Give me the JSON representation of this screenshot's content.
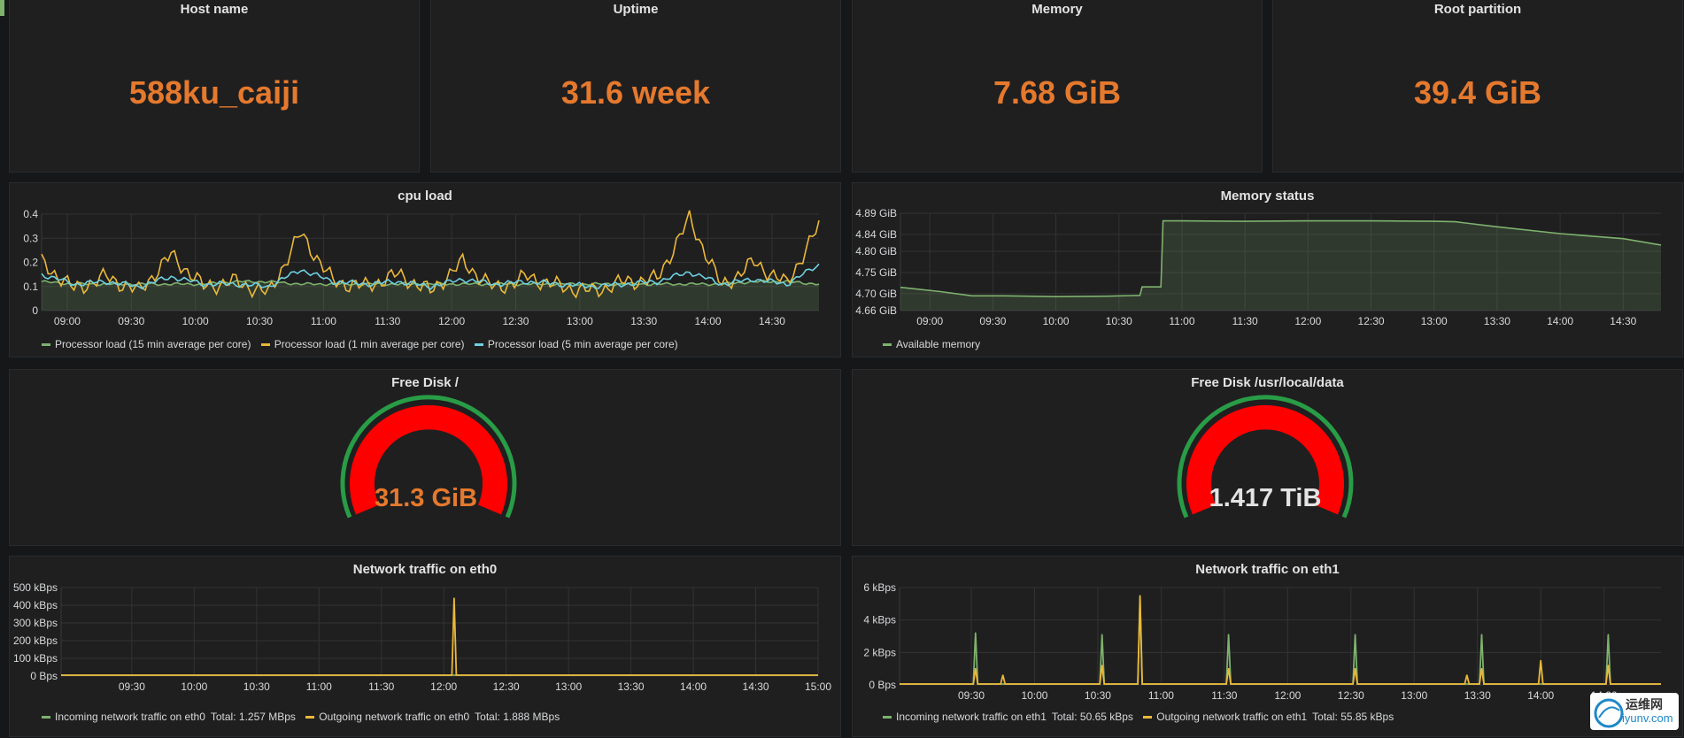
{
  "stats": [
    {
      "title": "Host name",
      "value": "588ku_caiji"
    },
    {
      "title": "Uptime",
      "value": "31.6 week"
    },
    {
      "title": "Memory",
      "value": "7.68 GiB"
    },
    {
      "title": "Root partition",
      "value": "39.4 GiB"
    }
  ],
  "cpu_panel": {
    "title": "cpu load",
    "legend": [
      {
        "label": "Processor load (15 min average per core)",
        "color": "#7eb26d"
      },
      {
        "label": "Processor load (1 min average per core)",
        "color": "#eab839"
      },
      {
        "label": "Processor load (5 min average per core)",
        "color": "#6ed0e0"
      }
    ]
  },
  "memory_panel": {
    "title": "Memory status",
    "legend": [
      {
        "label": "Available memory",
        "color": "#7eb26d"
      }
    ]
  },
  "disk_root": {
    "title": "Free Disk /",
    "value": "31.3 GiB",
    "value_color": "#e5792d"
  },
  "disk_data": {
    "title": "Free Disk /usr/local/data",
    "value": "1.417 TiB",
    "value_color": "#e3e3e3"
  },
  "eth0_panel": {
    "title": "Network traffic on eth0",
    "legend": [
      {
        "label": "Incoming network traffic on eth0",
        "total": "Total: 1.257 MBps",
        "color": "#7eb26d"
      },
      {
        "label": "Outgoing network traffic on eth0",
        "total": "Total: 1.888 MBps",
        "color": "#eab839"
      }
    ]
  },
  "eth1_panel": {
    "title": "Network traffic on eth1",
    "legend": [
      {
        "label": "Incoming network traffic on eth1",
        "total": "Total: 50.65 kBps",
        "color": "#7eb26d"
      },
      {
        "label": "Outgoing network traffic on eth1",
        "total": "Total: 55.85 kBps",
        "color": "#eab839"
      }
    ]
  },
  "watermark": {
    "brand": "运维网",
    "domain": "iyunv.com"
  },
  "chart_data": [
    {
      "type": "line",
      "title": "cpu load",
      "y_ticks": [
        "0",
        "0.1",
        "0.2",
        "0.3",
        "0.4"
      ],
      "ylim": [
        0,
        0.4
      ],
      "x_ticks": [
        "09:00",
        "09:30",
        "10:00",
        "10:30",
        "11:00",
        "11:30",
        "12:00",
        "12:30",
        "13:00",
        "13:30",
        "14:00",
        "14:30"
      ],
      "x_range": [
        "08:48",
        "14:52"
      ],
      "series": [
        {
          "name": "Processor load (15 min average per core)",
          "color": "#7eb26d",
          "values": [
            0.12,
            0.11,
            0.11,
            0.11,
            0.11,
            0.11,
            0.12,
            0.12,
            0.11,
            0.11,
            0.11,
            0.11,
            0.11,
            0.11,
            0.11,
            0.11,
            0.11,
            0.11,
            0.11,
            0.11,
            0.11,
            0.11,
            0.12,
            0.12,
            0.11
          ]
        },
        {
          "name": "Processor load (1 min average per core)",
          "color": "#eab839",
          "values": [
            0.2,
            0.09,
            0.14,
            0.08,
            0.23,
            0.1,
            0.12,
            0.07,
            0.32,
            0.12,
            0.1,
            0.15,
            0.08,
            0.2,
            0.09,
            0.14,
            0.1,
            0.08,
            0.12,
            0.13,
            0.38,
            0.1,
            0.2,
            0.11,
            0.35
          ]
        },
        {
          "name": "Processor load (5 min average per core)",
          "color": "#6ed0e0",
          "values": [
            0.15,
            0.11,
            0.12,
            0.1,
            0.14,
            0.11,
            0.11,
            0.1,
            0.17,
            0.12,
            0.11,
            0.12,
            0.1,
            0.13,
            0.11,
            0.12,
            0.11,
            0.1,
            0.11,
            0.12,
            0.16,
            0.11,
            0.13,
            0.11,
            0.19
          ]
        }
      ]
    },
    {
      "type": "area",
      "title": "Memory status",
      "y_ticks": [
        "4.66 GiB",
        "4.70 GiB",
        "4.75 GiB",
        "4.80 GiB",
        "4.84 GiB",
        "4.89 GiB"
      ],
      "ylim": [
        4.66,
        4.89
      ],
      "x_ticks": [
        "09:00",
        "09:30",
        "10:00",
        "10:30",
        "11:00",
        "11:30",
        "12:00",
        "12:30",
        "13:00",
        "13:30",
        "14:00",
        "14:30"
      ],
      "x_range": [
        "08:46",
        "14:48"
      ],
      "series": [
        {
          "name": "Available memory",
          "color": "#7eb26d",
          "x": [
            "08:46",
            "09:05",
            "09:20",
            "09:35",
            "10:00",
            "10:25",
            "10:40",
            "10:41",
            "10:50",
            "10:51",
            "11:00",
            "11:30",
            "12:00",
            "12:30",
            "13:00",
            "13:10",
            "13:30",
            "14:00",
            "14:30",
            "14:48"
          ],
          "values": [
            4.715,
            4.705,
            4.695,
            4.695,
            4.693,
            4.694,
            4.696,
            4.716,
            4.716,
            4.872,
            4.872,
            4.871,
            4.872,
            4.872,
            4.871,
            4.87,
            4.858,
            4.842,
            4.83,
            4.815
          ]
        }
      ]
    },
    {
      "type": "area",
      "title": "Network traffic on eth0",
      "y_ticks": [
        "0 Bps",
        "100 kBps",
        "200 kBps",
        "300 kBps",
        "400 kBps",
        "500 kBps"
      ],
      "ylim": [
        0,
        500
      ],
      "y_unit": "kBps",
      "x_ticks": [
        "09:30",
        "10:00",
        "10:30",
        "11:00",
        "11:30",
        "12:00",
        "12:30",
        "13:00",
        "13:30",
        "14:00",
        "14:30",
        "15:00"
      ],
      "x_range": [
        "08:56",
        "15:00"
      ],
      "series": [
        {
          "name": "Incoming network traffic on eth0",
          "color": "#7eb26d",
          "spikes": []
        },
        {
          "name": "Outgoing network traffic on eth0",
          "color": "#eab839",
          "spikes": [
            {
              "x": "12:05",
              "value": 440
            }
          ]
        }
      ]
    },
    {
      "type": "area",
      "title": "Network traffic on eth1",
      "y_ticks": [
        "0 Bps",
        "2 kBps",
        "4 kBps",
        "6 kBps"
      ],
      "ylim": [
        0,
        6
      ],
      "y_unit": "kBps",
      "x_ticks": [
        "09:30",
        "10:00",
        "10:30",
        "11:00",
        "11:30",
        "12:00",
        "12:30",
        "13:00",
        "13:30",
        "14:00",
        "14:30"
      ],
      "x_range": [
        "08:56",
        "14:57"
      ],
      "series": [
        {
          "name": "Incoming network traffic on eth1",
          "color": "#7eb26d",
          "spikes": [
            {
              "x": "09:32",
              "value": 3.2
            },
            {
              "x": "10:32",
              "value": 3.1
            },
            {
              "x": "10:50",
              "value": 5.4
            },
            {
              "x": "11:32",
              "value": 3.1
            },
            {
              "x": "12:32",
              "value": 3.1
            },
            {
              "x": "13:32",
              "value": 3.1
            },
            {
              "x": "14:32",
              "value": 3.1
            }
          ]
        },
        {
          "name": "Outgoing network traffic on eth1",
          "color": "#eab839",
          "spikes": [
            {
              "x": "09:32",
              "value": 1.0
            },
            {
              "x": "09:45",
              "value": 0.6
            },
            {
              "x": "10:32",
              "value": 1.2
            },
            {
              "x": "10:50",
              "value": 5.5
            },
            {
              "x": "11:32",
              "value": 1.0
            },
            {
              "x": "12:32",
              "value": 1.0
            },
            {
              "x": "13:25",
              "value": 0.6
            },
            {
              "x": "13:32",
              "value": 1.0
            },
            {
              "x": "14:00",
              "value": 1.5
            },
            {
              "x": "14:32",
              "value": 1.2
            }
          ]
        }
      ]
    },
    {
      "type": "gauge",
      "title": "Free Disk /",
      "value": "31.3 GiB"
    },
    {
      "type": "gauge",
      "title": "Free Disk /usr/local/data",
      "value": "1.417 TiB"
    }
  ]
}
